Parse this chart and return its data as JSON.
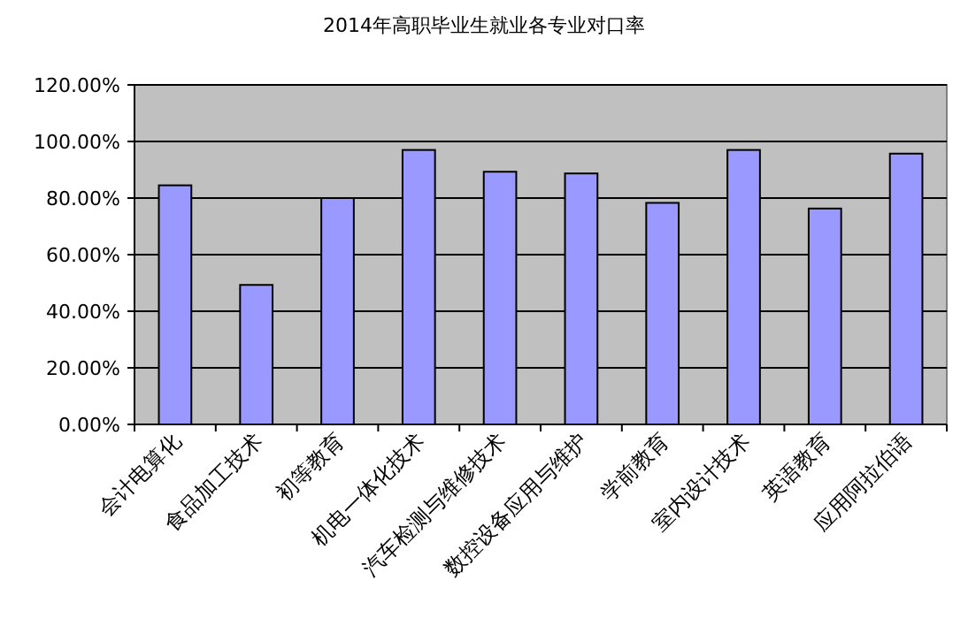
{
  "chart_data": {
    "type": "bar",
    "title": "2014年高职毕业生就业各专业对口率",
    "categories": [
      "会计电算化",
      "食品加工技术",
      "初等教育",
      "机电一体化技术",
      "汽车检测与维修技术",
      "数控设备应用与维护",
      "学前教育",
      "室内设计技术",
      "英语教育",
      "应用阿拉伯语"
    ],
    "values": [
      84.5,
      49.3,
      80,
      97,
      89.3,
      88.7,
      78.3,
      97,
      76.3,
      95.7
    ],
    "color": "#9999ff",
    "ylim": [
      0,
      120
    ],
    "yticks": [
      {
        "value": 0,
        "label": "0.00%"
      },
      {
        "value": 20,
        "label": "20.00%"
      },
      {
        "value": 40,
        "label": "40.00%"
      },
      {
        "value": 60,
        "label": "60.00%"
      },
      {
        "value": 80,
        "label": "80.00%"
      },
      {
        "value": 100,
        "label": "100.00%"
      },
      {
        "value": 120,
        "label": "120.00%"
      }
    ],
    "grid": "y"
  }
}
